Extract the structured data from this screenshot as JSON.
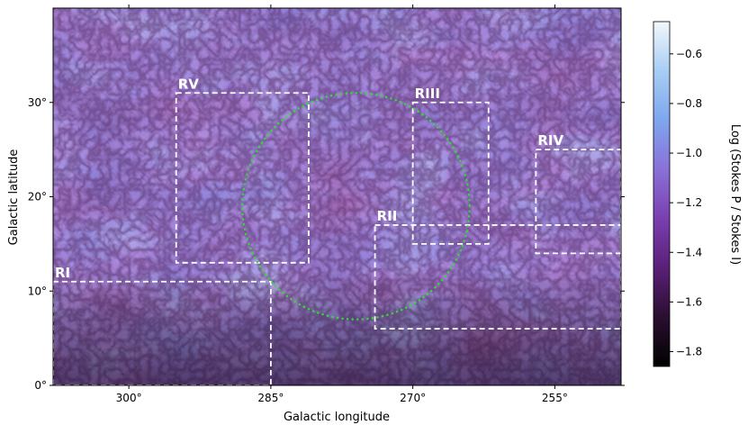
{
  "chart_data": {
    "type": "heatmap",
    "xlabel": "Galactic longitude",
    "ylabel": "Galactic latitude",
    "x_axis": {
      "range_deg": [
        308,
        248
      ],
      "direction": "decreasing",
      "ticks": [
        300,
        285,
        270,
        255
      ],
      "tick_labels": [
        "300°",
        "285°",
        "270°",
        "255°"
      ]
    },
    "y_axis": {
      "range_deg": [
        0,
        40
      ],
      "ticks": [
        0,
        10,
        20,
        30
      ],
      "tick_labels": [
        "0°",
        "10°",
        "20°",
        "30°"
      ]
    },
    "colorbar": {
      "label": "Log (Stokes P / Stokes I)",
      "range": [
        -1.86,
        -0.47
      ],
      "ticks": [
        -0.6,
        -0.8,
        -1.0,
        -1.2,
        -1.4,
        -1.6,
        -1.8
      ],
      "tick_labels": [
        "−0.6",
        "−0.8",
        "−1.0",
        "−1.2",
        "−1.4",
        "−1.6",
        "−1.8"
      ],
      "colors": [
        "#000000",
        "#2a0f30",
        "#5a1f78",
        "#7a3fb0",
        "#8a70d8",
        "#7ea6ee",
        "#a8cdf4",
        "#f2f7fb"
      ]
    },
    "regions": [
      {
        "label": "RI",
        "l_range": [
          285,
          308
        ],
        "b_range": [
          0,
          11
        ]
      },
      {
        "label": "RII",
        "l_range": [
          248,
          274
        ],
        "b_range": [
          6,
          17
        ]
      },
      {
        "label": "RIII",
        "l_range": [
          262,
          270
        ],
        "b_range": [
          15,
          30
        ]
      },
      {
        "label": "RIV",
        "l_range": [
          248,
          257
        ],
        "b_range": [
          14,
          25
        ]
      },
      {
        "label": "RV",
        "l_range": [
          281,
          295
        ],
        "b_range": [
          13,
          31
        ]
      }
    ],
    "circle": {
      "center_l": 276,
      "center_b": 19,
      "radius_deg": 12,
      "style": "green dotted"
    },
    "grid": false
  }
}
